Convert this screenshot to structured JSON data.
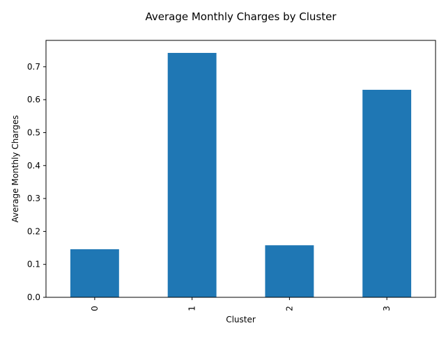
{
  "chart_data": {
    "type": "bar",
    "title": "Average Monthly Charges by Cluster",
    "xlabel": "Cluster",
    "ylabel": "Average Monthly Charges",
    "categories": [
      "0",
      "1",
      "2",
      "3"
    ],
    "values": [
      0.146,
      0.742,
      0.158,
      0.63
    ],
    "ylim": [
      0,
      0.78
    ],
    "yticks": [
      "0.0",
      "0.1",
      "0.2",
      "0.3",
      "0.4",
      "0.5",
      "0.6",
      "0.7"
    ],
    "bar_color": "#1f77b4",
    "grid": false,
    "legend": false
  }
}
